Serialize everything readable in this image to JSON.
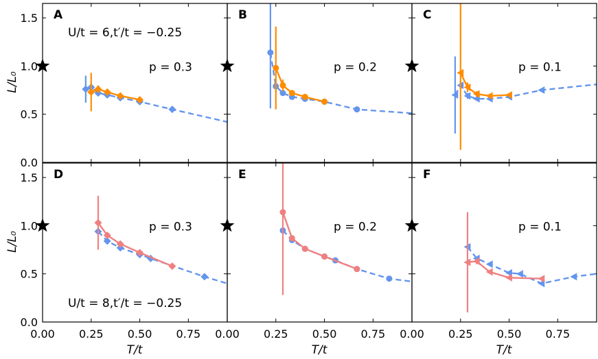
{
  "colors": {
    "blue": "#6495ed",
    "orange": "#ff8c00",
    "salmon": "#f08080",
    "star": "#000000"
  },
  "axes": {
    "ylabel": "L/L₀",
    "xlabel": "T/t",
    "yticks": [
      "0.0",
      "0.5",
      "1.0",
      "1.5"
    ],
    "xticks": [
      "0.00",
      "0.25",
      "0.50",
      "0.75"
    ],
    "xlim": [
      0,
      0.95
    ],
    "ylim": [
      0,
      1.65
    ]
  },
  "chart_data": [
    {
      "type": "line",
      "panel": "A",
      "param_label": "U/t = 6,t′/t = −0.25",
      "doping_label": "p = 0.3",
      "reference_star": {
        "x": 0.0,
        "y": 1.0
      },
      "series": [
        {
          "name": "blue",
          "color": "blue",
          "marker": "diamond",
          "style": "dashed",
          "x": [
            0.222,
            0.25,
            0.286,
            0.333,
            0.4,
            0.5,
            0.667,
            0.95
          ],
          "y": [
            0.76,
            0.78,
            0.72,
            0.7,
            0.67,
            0.63,
            0.55,
            0.42
          ],
          "err": [
            0.14,
            0.05,
            0.03,
            0.02,
            0.02,
            0.02,
            0.01,
            0.0
          ],
          "marker_count": 7
        },
        {
          "name": "orange",
          "color": "orange",
          "marker": "diamond",
          "style": "solid",
          "x": [
            0.25,
            0.286,
            0.333,
            0.4,
            0.5
          ],
          "y": [
            0.73,
            0.76,
            0.73,
            0.69,
            0.65
          ],
          "err": [
            0.2,
            0.04,
            0.03,
            0.02,
            0.02
          ]
        }
      ]
    },
    {
      "type": "line",
      "panel": "B",
      "doping_label": "p = 0.2",
      "reference_star": {
        "x": 0.0,
        "y": 1.0
      },
      "series": [
        {
          "name": "blue",
          "color": "blue",
          "marker": "circle",
          "style": "dashed",
          "x": [
            0.222,
            0.25,
            0.286,
            0.333,
            0.4,
            0.5,
            0.667,
            0.95
          ],
          "y": [
            1.14,
            0.79,
            0.72,
            0.68,
            0.66,
            0.63,
            0.55,
            0.51
          ],
          "err": [
            0.58,
            0.06,
            0.03,
            0.02,
            0.02,
            0.02,
            0.01,
            0.0
          ],
          "marker_count": 7
        },
        {
          "name": "orange",
          "color": "orange",
          "marker": "circle",
          "style": "solid",
          "x": [
            0.25,
            0.286,
            0.333,
            0.4,
            0.5
          ],
          "y": [
            0.98,
            0.8,
            0.72,
            0.68,
            0.63
          ],
          "err": [
            0.43,
            0.06,
            0.03,
            0.02,
            0.02
          ]
        }
      ]
    },
    {
      "type": "line",
      "panel": "C",
      "doping_label": "p = 0.1",
      "reference_star": {
        "x": 0.0,
        "y": 1.0
      },
      "series": [
        {
          "name": "blue",
          "color": "blue",
          "marker": "triangle-left",
          "style": "dashed",
          "x": [
            0.222,
            0.25,
            0.286,
            0.333,
            0.4,
            0.5,
            0.667,
            0.95
          ],
          "y": [
            0.7,
            0.8,
            0.69,
            0.66,
            0.66,
            0.68,
            0.75,
            0.81
          ],
          "err": [
            0.4,
            0.04,
            0.03,
            0.02,
            0.02,
            0.02,
            0.01,
            0.0
          ],
          "marker_count": 7
        },
        {
          "name": "orange",
          "color": "orange",
          "marker": "triangle-left",
          "style": "solid",
          "x": [
            0.25,
            0.286,
            0.333,
            0.4,
            0.5
          ],
          "y": [
            0.93,
            0.78,
            0.71,
            0.69,
            0.7
          ],
          "err": [
            0.8,
            0.05,
            0.03,
            0.02,
            0.02
          ]
        }
      ]
    },
    {
      "type": "line",
      "panel": "D",
      "param_label": "U/t = 8,t′/t = −0.25",
      "doping_label": "p = 0.3",
      "reference_star": {
        "x": 0.0,
        "y": 1.0
      },
      "series": [
        {
          "name": "blue",
          "color": "blue",
          "marker": "diamond",
          "style": "dashed",
          "x": [
            0.286,
            0.333,
            0.4,
            0.5,
            0.556,
            0.833,
            0.95
          ],
          "y": [
            0.94,
            0.84,
            0.77,
            0.7,
            0.66,
            0.47,
            0.4
          ],
          "err": [
            0.03,
            0.02,
            0.02,
            0.02,
            0.01,
            0.01,
            0.0
          ],
          "marker_count": 6
        },
        {
          "name": "salmon",
          "color": "salmon",
          "marker": "diamond",
          "style": "solid",
          "x": [
            0.286,
            0.333,
            0.4,
            0.5,
            0.667
          ],
          "y": [
            1.03,
            0.9,
            0.81,
            0.72,
            0.58
          ],
          "err": [
            0.28,
            0.03,
            0.02,
            0.02,
            0.02
          ]
        }
      ]
    },
    {
      "type": "line",
      "panel": "E",
      "doping_label": "p = 0.2",
      "reference_star": {
        "x": 0.0,
        "y": 1.0
      },
      "series": [
        {
          "name": "blue",
          "color": "blue",
          "marker": "circle",
          "style": "dashed",
          "x": [
            0.286,
            0.333,
            0.4,
            0.5,
            0.556,
            0.667,
            0.833,
            0.95
          ],
          "y": [
            0.95,
            0.85,
            0.76,
            0.68,
            0.64,
            0.55,
            0.45,
            0.42
          ],
          "err": [
            0.03,
            0.02,
            0.02,
            0.02,
            0.01,
            0.01,
            0.01,
            0.0
          ],
          "marker_count": 7
        },
        {
          "name": "salmon",
          "color": "salmon",
          "marker": "circle",
          "style": "solid",
          "x": [
            0.286,
            0.333,
            0.4,
            0.5,
            0.667
          ],
          "y": [
            1.14,
            0.87,
            0.76,
            0.68,
            0.55
          ],
          "err": [
            0.86,
            0.03,
            0.02,
            0.02,
            0.02
          ]
        }
      ]
    },
    {
      "type": "line",
      "panel": "F",
      "doping_label": "p = 0.1",
      "reference_star": {
        "x": 0.0,
        "y": 1.0
      },
      "series": [
        {
          "name": "blue",
          "color": "blue",
          "marker": "triangle-left",
          "style": "dashed",
          "x": [
            0.286,
            0.333,
            0.4,
            0.5,
            0.556,
            0.667,
            0.833,
            0.95
          ],
          "y": [
            0.78,
            0.66,
            0.6,
            0.51,
            0.5,
            0.4,
            0.47,
            0.5
          ],
          "err": [
            0.03,
            0.02,
            0.02,
            0.02,
            0.01,
            0.01,
            0.01,
            0.0
          ],
          "marker_count": 7
        },
        {
          "name": "salmon",
          "color": "salmon",
          "marker": "triangle-left",
          "style": "solid",
          "x": [
            0.286,
            0.333,
            0.4,
            0.5,
            0.667
          ],
          "y": [
            0.62,
            0.63,
            0.52,
            0.46,
            0.45
          ],
          "err": [
            0.52,
            0.03,
            0.02,
            0.02,
            0.02
          ]
        }
      ]
    }
  ]
}
